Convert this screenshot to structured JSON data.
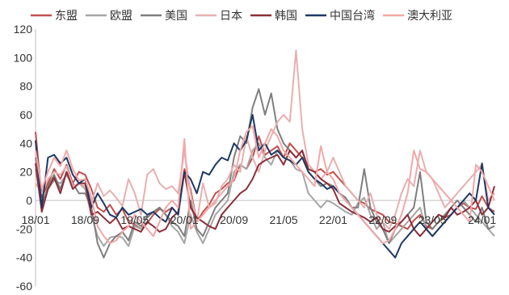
{
  "chart_data": {
    "type": "line",
    "title": "",
    "xlabel": "",
    "ylabel": "",
    "ylim": [
      -60,
      120
    ],
    "y_ticks": [
      -60,
      -40,
      -20,
      0,
      20,
      40,
      60,
      80,
      100,
      120
    ],
    "legend_position": "top",
    "grid": false,
    "x_tick_labels": [
      "18/01",
      "18/09",
      "19/05",
      "20/01",
      "20/09",
      "21/05",
      "22/01",
      "22/09",
      "23/05",
      "24/01"
    ],
    "x_tick_index": [
      0,
      8,
      16,
      24,
      32,
      40,
      48,
      56,
      64,
      72
    ],
    "x": [
      "18/01",
      "18/02",
      "18/03",
      "18/04",
      "18/05",
      "18/06",
      "18/07",
      "18/08",
      "18/09",
      "18/10",
      "18/11",
      "18/12",
      "19/01",
      "19/02",
      "19/03",
      "19/04",
      "19/05",
      "19/06",
      "19/07",
      "19/08",
      "19/09",
      "19/10",
      "19/11",
      "19/12",
      "20/01",
      "20/02",
      "20/03",
      "20/04",
      "20/05",
      "20/06",
      "20/07",
      "20/08",
      "20/09",
      "20/10",
      "20/11",
      "20/12",
      "21/01",
      "21/02",
      "21/03",
      "21/04",
      "21/05",
      "21/06",
      "21/07",
      "21/08",
      "21/09",
      "21/10",
      "21/11",
      "21/12",
      "22/01",
      "22/02",
      "22/03",
      "22/04",
      "22/05",
      "22/06",
      "22/07",
      "22/08",
      "22/09",
      "22/10",
      "22/11",
      "22/12",
      "23/01",
      "23/02",
      "23/03",
      "23/04",
      "23/05",
      "23/06",
      "23/07",
      "23/08",
      "23/09",
      "23/10",
      "23/11",
      "23/12",
      "24/01",
      "24/02",
      "24/03"
    ],
    "series": [
      {
        "name": "东盟",
        "color": "#c0504d",
        "values": [
          48,
          2,
          12,
          22,
          15,
          25,
          12,
          20,
          18,
          8,
          -5,
          -8,
          -3,
          -10,
          -6,
          -15,
          -17,
          -20,
          -16,
          -10,
          -6,
          -8,
          -5,
          -10,
          22,
          8,
          -15,
          -8,
          -3,
          5,
          8,
          12,
          14,
          25,
          22,
          30,
          45,
          32,
          35,
          38,
          30,
          40,
          35,
          30,
          25,
          20,
          22,
          18,
          20,
          15,
          10,
          5,
          0,
          -2,
          -6,
          -8,
          -10,
          -15,
          -16,
          -18,
          -20,
          -14,
          -10,
          -18,
          -20,
          -15,
          -12,
          -10,
          -5,
          -2,
          -5,
          -6,
          3,
          -5,
          -8
        ]
      },
      {
        "name": "欧盟",
        "color": "#a6a6a6",
        "values": [
          22,
          -5,
          8,
          14,
          12,
          18,
          10,
          12,
          8,
          -10,
          -25,
          -32,
          -26,
          -25,
          -26,
          -32,
          -18,
          -20,
          -10,
          -8,
          -5,
          -10,
          -18,
          -22,
          -30,
          -10,
          -22,
          -30,
          -20,
          -10,
          -5,
          0,
          20,
          25,
          22,
          35,
          40,
          30,
          25,
          35,
          30,
          28,
          22,
          20,
          5,
          0,
          -5,
          0,
          -2,
          -5,
          -8,
          -10,
          -2,
          2,
          -10,
          -20,
          -15,
          -30,
          -25,
          -20,
          -15,
          -10,
          -5,
          -20,
          -25,
          -20,
          -15,
          -10,
          -5,
          0,
          -5,
          -10,
          -15,
          -20,
          -25
        ]
      },
      {
        "name": "美国",
        "color": "#7f7f7f",
        "values": [
          30,
          -5,
          10,
          18,
          8,
          20,
          12,
          5,
          5,
          -5,
          -30,
          -40,
          -30,
          -25,
          -22,
          -28,
          -15,
          -18,
          -12,
          -8,
          -5,
          -10,
          -15,
          -18,
          -25,
          0,
          -20,
          -25,
          -15,
          -5,
          0,
          5,
          30,
          45,
          40,
          65,
          78,
          60,
          75,
          50,
          40,
          35,
          30,
          35,
          20,
          15,
          10,
          12,
          10,
          5,
          2,
          -5,
          -5,
          22,
          -5,
          -15,
          -20,
          -30,
          -20,
          -15,
          -10,
          -5,
          20,
          -15,
          -20,
          -15,
          -10,
          -5,
          0,
          -5,
          -10,
          -15,
          -5,
          -20,
          -18
        ]
      },
      {
        "name": "日本",
        "color": "#e6b0b0",
        "values": [
          12,
          5,
          15,
          20,
          18,
          24,
          10,
          12,
          10,
          -2,
          12,
          3,
          7,
          2,
          -4,
          15,
          5,
          -10,
          18,
          22,
          12,
          8,
          10,
          5,
          35,
          5,
          -15,
          12,
          -5,
          -2,
          10,
          15,
          25,
          20,
          45,
          30,
          20,
          35,
          45,
          55,
          60,
          55,
          105,
          50,
          25,
          20,
          15,
          20,
          30,
          20,
          10,
          5,
          0,
          -5,
          5,
          -10,
          -15,
          -20,
          -10,
          5,
          15,
          10,
          35,
          20,
          15,
          5,
          -5,
          0,
          5,
          10,
          15,
          20,
          25,
          0,
          5
        ]
      },
      {
        "name": "韩国",
        "color": "#8b2f3a",
        "values": [
          26,
          -8,
          8,
          16,
          5,
          20,
          8,
          12,
          12,
          -10,
          -8,
          -12,
          -16,
          -12,
          -20,
          -18,
          -20,
          -22,
          -15,
          -18,
          -22,
          -20,
          -12,
          -8,
          20,
          -5,
          -12,
          -15,
          -18,
          -20,
          -10,
          -5,
          0,
          5,
          8,
          15,
          25,
          28,
          30,
          32,
          25,
          35,
          30,
          35,
          22,
          20,
          15,
          12,
          8,
          -2,
          -5,
          -8,
          -10,
          -12,
          -15,
          -12,
          -20,
          -22,
          -18,
          -15,
          -10,
          -20,
          -25,
          -20,
          -15,
          -10,
          -12,
          -5,
          -10,
          -8,
          -5,
          0,
          -10,
          -5,
          10
        ]
      },
      {
        "name": "中国台湾",
        "color": "#1f3864",
        "values": [
          42,
          -5,
          30,
          32,
          26,
          30,
          18,
          12,
          15,
          -5,
          5,
          -2,
          -10,
          -12,
          -5,
          -10,
          -8,
          -6,
          -10,
          -8,
          -12,
          -15,
          -5,
          -10,
          20,
          15,
          5,
          20,
          18,
          25,
          30,
          28,
          40,
          35,
          42,
          60,
          35,
          40,
          32,
          35,
          30,
          28,
          25,
          30,
          20,
          15,
          12,
          8,
          10,
          5,
          0,
          -5,
          -10,
          -15,
          -20,
          -25,
          -30,
          -35,
          -40,
          -30,
          -25,
          -20,
          -15,
          -20,
          -25,
          -20,
          -15,
          -10,
          -5,
          0,
          5,
          0,
          26,
          -5,
          -10
        ]
      },
      {
        "name": "澳大利亚",
        "color": "#f4a7a7",
        "values": [
          35,
          8,
          20,
          30,
          24,
          35,
          22,
          14,
          15,
          2,
          -18,
          -25,
          -30,
          -28,
          -22,
          -18,
          -10,
          -15,
          -20,
          -25,
          -15,
          -5,
          0,
          -5,
          43,
          -20,
          -15,
          -10,
          -5,
          0,
          5,
          10,
          15,
          35,
          48,
          52,
          30,
          40,
          50,
          45,
          35,
          30,
          25,
          20,
          15,
          10,
          38,
          20,
          15,
          5,
          0,
          -5,
          -10,
          -15,
          -20,
          -25,
          -30,
          -28,
          -20,
          -10,
          5,
          35,
          22,
          20,
          15,
          10,
          5,
          0,
          -5,
          -10,
          -15,
          25,
          20,
          10,
          0
        ]
      }
    ]
  }
}
